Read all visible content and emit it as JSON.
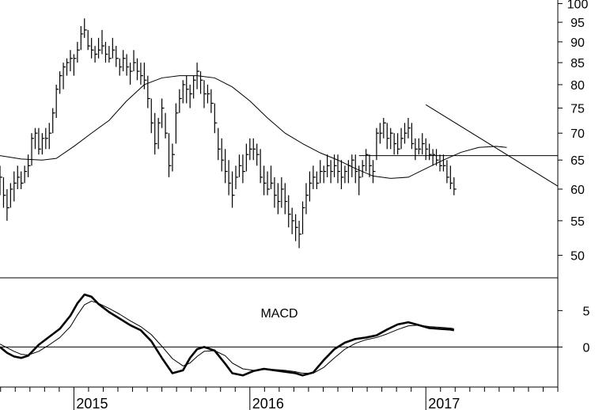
{
  "chart_data": [
    {
      "type": "ohlc",
      "panel": "price",
      "y_axis": {
        "position": "right",
        "scale": "log",
        "ylim": [
          47,
          101
        ],
        "ticks": [
          50,
          55,
          60,
          65,
          70,
          75,
          80,
          85,
          90,
          95,
          100
        ]
      },
      "x_axis": {
        "tick_labels": [
          "2015",
          "2016",
          "2017"
        ],
        "years": [
          2015,
          2016,
          2017
        ],
        "xlim": [
          2014.58,
          2017.75
        ]
      },
      "ma_line": {
        "x": [
          2014.58,
          2014.7,
          2014.82,
          2014.9,
          2015.0,
          2015.1,
          2015.2,
          2015.3,
          2015.4,
          2015.5,
          2015.6,
          2015.7,
          2015.8,
          2015.9,
          2016.0,
          2016.1,
          2016.2,
          2016.3,
          2016.4,
          2016.5,
          2016.6,
          2016.7,
          2016.8,
          2016.9,
          2017.0,
          2017.1,
          2017.2,
          2017.3,
          2017.4,
          2017.46
        ],
        "y": [
          65.8,
          65.2,
          65.0,
          65.3,
          67.5,
          70.0,
          72.5,
          76.5,
          80.0,
          81.5,
          82.0,
          82.0,
          81.5,
          79.5,
          76.5,
          73.0,
          70.0,
          68.0,
          66.3,
          65.0,
          63.5,
          62.2,
          61.8,
          62.0,
          63.5,
          65.0,
          66.4,
          67.3,
          67.5,
          67.3
        ]
      },
      "horizontal_line": {
        "y": 65.8,
        "x_start": 2016.62,
        "x_end": 2017.75
      },
      "trendline": {
        "x": [
          2017.0,
          2017.75
        ],
        "y": [
          75.7,
          60.5
        ]
      },
      "bars": [
        [
          2014.58,
          64,
          59,
          62
        ],
        [
          2014.6,
          62,
          57,
          59
        ],
        [
          2014.62,
          60,
          55,
          57
        ],
        [
          2014.64,
          61,
          57,
          60
        ],
        [
          2014.66,
          63,
          58,
          61
        ],
        [
          2014.68,
          64,
          60,
          62
        ],
        [
          2014.7,
          63,
          60,
          61
        ],
        [
          2014.72,
          64,
          61,
          63
        ],
        [
          2014.74,
          66,
          62,
          64
        ],
        [
          2014.76,
          70,
          64,
          69
        ],
        [
          2014.78,
          71,
          67,
          70
        ],
        [
          2014.8,
          71,
          66,
          67
        ],
        [
          2014.82,
          70,
          66,
          69
        ],
        [
          2014.84,
          71,
          67,
          69
        ],
        [
          2014.86,
          72,
          67,
          70
        ],
        [
          2014.88,
          75,
          70,
          74
        ],
        [
          2014.9,
          80,
          73,
          79
        ],
        [
          2014.92,
          83,
          78,
          82
        ],
        [
          2014.94,
          85,
          79,
          84
        ],
        [
          2014.96,
          86,
          82,
          85
        ],
        [
          2014.98,
          88,
          83,
          86
        ],
        [
          2015.0,
          87,
          82,
          86
        ],
        [
          2015.02,
          90,
          85,
          88
        ],
        [
          2015.04,
          94,
          88,
          92
        ],
        [
          2015.06,
          96,
          91,
          93
        ],
        [
          2015.08,
          93,
          88,
          89
        ],
        [
          2015.1,
          91,
          86,
          88
        ],
        [
          2015.12,
          89,
          85,
          87
        ],
        [
          2015.14,
          91,
          86,
          88
        ],
        [
          2015.16,
          93,
          87,
          89
        ],
        [
          2015.18,
          90,
          85,
          87
        ],
        [
          2015.2,
          89,
          85,
          86
        ],
        [
          2015.22,
          91,
          86,
          88
        ],
        [
          2015.24,
          89,
          84,
          86
        ],
        [
          2015.26,
          86,
          82,
          84
        ],
        [
          2015.28,
          88,
          83,
          86
        ],
        [
          2015.3,
          87,
          82,
          84
        ],
        [
          2015.32,
          85,
          80,
          83
        ],
        [
          2015.34,
          88,
          83,
          85
        ],
        [
          2015.36,
          86,
          81,
          83
        ],
        [
          2015.38,
          85,
          80,
          82
        ],
        [
          2015.4,
          85,
          79,
          81
        ],
        [
          2015.42,
          82,
          75,
          77
        ],
        [
          2015.44,
          77,
          70,
          72
        ],
        [
          2015.46,
          74,
          66,
          68
        ],
        [
          2015.48,
          73,
          67,
          72
        ],
        [
          2015.5,
          77,
          71,
          75
        ],
        [
          2015.52,
          74,
          69,
          70
        ],
        [
          2015.54,
          70,
          62,
          64
        ],
        [
          2015.56,
          68,
          63,
          66
        ],
        [
          2015.58,
          76,
          68,
          74
        ],
        [
          2015.6,
          79,
          74,
          77
        ],
        [
          2015.62,
          81,
          76,
          80
        ],
        [
          2015.64,
          82,
          76,
          79
        ],
        [
          2015.66,
          80,
          75,
          78
        ],
        [
          2015.68,
          82,
          77,
          81
        ],
        [
          2015.7,
          85,
          79,
          83
        ],
        [
          2015.72,
          83,
          78,
          81
        ],
        [
          2015.74,
          81,
          75,
          78
        ],
        [
          2015.76,
          80,
          76,
          78
        ],
        [
          2015.78,
          79,
          74,
          76
        ],
        [
          2015.8,
          76,
          70,
          72
        ],
        [
          2015.82,
          71,
          65,
          67
        ],
        [
          2015.84,
          69,
          63,
          65
        ],
        [
          2015.86,
          67,
          61,
          63
        ],
        [
          2015.88,
          65,
          59,
          61
        ],
        [
          2015.9,
          63,
          57,
          59
        ],
        [
          2015.92,
          64,
          60,
          62
        ],
        [
          2015.94,
          66,
          62,
          64
        ],
        [
          2015.96,
          66,
          61,
          63
        ],
        [
          2015.98,
          68,
          63,
          66
        ],
        [
          2016.0,
          69,
          65,
          67
        ],
        [
          2016.02,
          69,
          65,
          67
        ],
        [
          2016.04,
          68,
          64,
          66
        ],
        [
          2016.06,
          67,
          61,
          62
        ],
        [
          2016.08,
          64,
          59,
          61
        ],
        [
          2016.1,
          63,
          59,
          60
        ],
        [
          2016.12,
          64,
          60,
          61
        ],
        [
          2016.14,
          62,
          57,
          59
        ],
        [
          2016.16,
          61,
          56,
          58
        ],
        [
          2016.18,
          62,
          57,
          60
        ],
        [
          2016.2,
          61,
          56,
          58
        ],
        [
          2016.22,
          59,
          54,
          56
        ],
        [
          2016.24,
          57,
          53,
          55
        ],
        [
          2016.26,
          56,
          52,
          54
        ],
        [
          2016.28,
          55,
          51,
          53
        ],
        [
          2016.3,
          58,
          53,
          57
        ],
        [
          2016.32,
          61,
          56,
          59
        ],
        [
          2016.34,
          63,
          58,
          61
        ],
        [
          2016.36,
          64,
          60,
          62
        ],
        [
          2016.38,
          63,
          60,
          61
        ],
        [
          2016.4,
          65,
          61,
          63
        ],
        [
          2016.42,
          64,
          61,
          63
        ],
        [
          2016.44,
          66,
          62,
          64
        ],
        [
          2016.46,
          65,
          61,
          63
        ],
        [
          2016.48,
          66,
          62,
          64
        ],
        [
          2016.5,
          66,
          61,
          63
        ],
        [
          2016.52,
          65,
          60,
          62
        ],
        [
          2016.54,
          64,
          61,
          63
        ],
        [
          2016.56,
          65,
          61,
          64
        ],
        [
          2016.58,
          66,
          62,
          65
        ],
        [
          2016.6,
          66,
          61,
          63
        ],
        [
          2016.62,
          64,
          59,
          62
        ],
        [
          2016.64,
          65,
          62,
          64
        ],
        [
          2016.66,
          67,
          63,
          66
        ],
        [
          2016.68,
          66,
          62,
          64
        ],
        [
          2016.7,
          65,
          61,
          63
        ],
        [
          2016.72,
          71,
          65,
          70
        ],
        [
          2016.74,
          72,
          68,
          70
        ],
        [
          2016.76,
          73,
          69,
          72
        ],
        [
          2016.78,
          72,
          67,
          69
        ],
        [
          2016.8,
          71,
          67,
          70
        ],
        [
          2016.82,
          70,
          66,
          68
        ],
        [
          2016.84,
          70,
          66,
          67
        ],
        [
          2016.86,
          71,
          67,
          69
        ],
        [
          2016.88,
          72,
          68,
          70
        ],
        [
          2016.9,
          73,
          69,
          71
        ],
        [
          2016.92,
          72,
          67,
          68
        ],
        [
          2016.94,
          69,
          65,
          67
        ],
        [
          2016.96,
          69,
          66,
          67
        ],
        [
          2016.98,
          70,
          66,
          68
        ],
        [
          2017.0,
          69,
          65,
          67
        ],
        [
          2017.02,
          68,
          65,
          66
        ],
        [
          2017.04,
          67,
          64,
          66
        ],
        [
          2017.06,
          67,
          64,
          65
        ],
        [
          2017.08,
          66,
          63,
          64
        ],
        [
          2017.1,
          66,
          63,
          64
        ],
        [
          2017.12,
          65,
          61,
          62
        ],
        [
          2017.14,
          64,
          60,
          61
        ],
        [
          2017.16,
          62,
          59,
          60
        ]
      ]
    },
    {
      "type": "line",
      "panel": "indicator",
      "title": "MACD",
      "y_axis": {
        "position": "right",
        "ylim": [
          -5.5,
          9.5
        ],
        "ticks": [
          0,
          5
        ],
        "zero_line": true
      },
      "x": [
        2014.58,
        2014.62,
        2014.66,
        2014.7,
        2014.74,
        2014.8,
        2014.86,
        2014.92,
        2014.98,
        2015.02,
        2015.06,
        2015.1,
        2015.14,
        2015.2,
        2015.26,
        2015.32,
        2015.38,
        2015.44,
        2015.5,
        2015.56,
        2015.62,
        2015.66,
        2015.7,
        2015.74,
        2015.8,
        2015.86,
        2015.9,
        2015.96,
        2016.02,
        2016.08,
        2016.14,
        2016.2,
        2016.26,
        2016.3,
        2016.36,
        2016.42,
        2016.48,
        2016.54,
        2016.6,
        2016.66,
        2016.72,
        2016.78,
        2016.84,
        2016.9,
        2016.96,
        2017.02,
        2017.08,
        2017.14,
        2017.16
      ],
      "series": [
        {
          "values": [
            0,
            -0.8,
            -1.3,
            -1.5,
            -1.2,
            0.3,
            1.4,
            2.5,
            4.3,
            6.0,
            7.2,
            6.9,
            5.9,
            4.8,
            3.9,
            3.0,
            2.3,
            0.8,
            -1.5,
            -3.6,
            -3.2,
            -1.5,
            -0.3,
            0.0,
            -0.5,
            -2.3,
            -3.6,
            -3.9,
            -3.3,
            -3.0,
            -3.2,
            -3.4,
            -3.6,
            -3.9,
            -3.5,
            -1.8,
            -0.3,
            0.6,
            1.1,
            1.3,
            1.6,
            2.4,
            3.1,
            3.4,
            3.0,
            2.6,
            2.5,
            2.4,
            2.3
          ]
        },
        {
          "values": [
            0.4,
            -0.1,
            -0.6,
            -1.0,
            -1.1,
            -0.6,
            0.3,
            1.3,
            2.8,
            4.4,
            5.8,
            6.3,
            6.0,
            5.3,
            4.5,
            3.6,
            2.8,
            1.7,
            0.1,
            -1.6,
            -2.6,
            -2.2,
            -1.3,
            -0.6,
            -0.5,
            -1.2,
            -2.2,
            -3.0,
            -3.2,
            -3.1,
            -3.1,
            -3.2,
            -3.4,
            -3.6,
            -3.6,
            -2.8,
            -1.5,
            -0.3,
            0.5,
            1.0,
            1.3,
            1.8,
            2.4,
            2.9,
            3.0,
            2.8,
            2.7,
            2.6,
            2.5
          ]
        }
      ]
    }
  ]
}
